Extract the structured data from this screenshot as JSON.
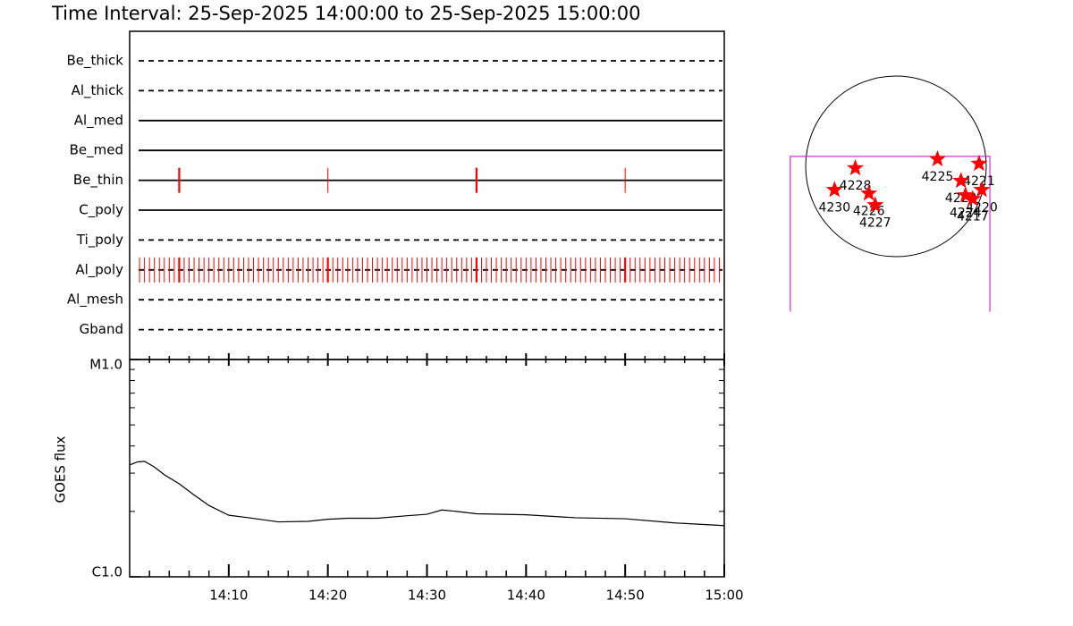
{
  "chart_data": [
    {
      "type": "timeline",
      "title": "Time Interval: 25-Sep-2025 14:00:00 to 25-Sep-2025 15:00:00",
      "xlim": [
        0,
        60
      ],
      "xticks": [
        {
          "value": 10,
          "label": "14:10"
        },
        {
          "value": 20,
          "label": "14:20"
        },
        {
          "value": 30,
          "label": "14:30"
        },
        {
          "value": 40,
          "label": "14:40"
        },
        {
          "value": 50,
          "label": "14:50"
        },
        {
          "value": 60,
          "label": "15:00"
        }
      ],
      "xminor": [
        2,
        4,
        6,
        8,
        12,
        14,
        16,
        18,
        22,
        24,
        26,
        28,
        32,
        34,
        36,
        38,
        42,
        44,
        46,
        48,
        52,
        54,
        56,
        58
      ],
      "color": "#ff0000",
      "rows": [
        {
          "name": "Be_thick",
          "style": "dashed",
          "events": []
        },
        {
          "name": "Al_thick",
          "style": "dashed",
          "events": []
        },
        {
          "name": "Al_med",
          "style": "solid",
          "events": []
        },
        {
          "name": "Be_med",
          "style": "solid",
          "events": []
        },
        {
          "name": "Be_thin",
          "style": "solid",
          "events": [
            5,
            20,
            35,
            50
          ],
          "thick_events": [
            5,
            35
          ]
        },
        {
          "name": "C_poly",
          "style": "solid",
          "events": []
        },
        {
          "name": "Ti_poly",
          "style": "dashed",
          "events": []
        },
        {
          "name": "Al_poly",
          "style": "dashed",
          "events": [
            1,
            1.5,
            2,
            2.5,
            3,
            3.5,
            4,
            4.5,
            5.5,
            6,
            6.5,
            7,
            7.5,
            8,
            8.5,
            9,
            9.5,
            10,
            10.5,
            11,
            11.5,
            12,
            12.5,
            13,
            13.5,
            14,
            14.5,
            15,
            15.5,
            16,
            16.5,
            17,
            17.5,
            18,
            18.5,
            19,
            19.5,
            20.5,
            21,
            21.5,
            22,
            22.5,
            23,
            23.5,
            24,
            24.5,
            25,
            25.5,
            26,
            26.5,
            27,
            27.5,
            28,
            28.5,
            29,
            29.5,
            30,
            30.5,
            31,
            31.5,
            32,
            32.5,
            33,
            33.5,
            34,
            34.5,
            35.5,
            36,
            36.5,
            37,
            37.5,
            38,
            38.5,
            39,
            39.5,
            40,
            40.5,
            41,
            41.5,
            42,
            42.5,
            43,
            43.5,
            44,
            44.5,
            45,
            45.5,
            46,
            46.5,
            47,
            47.5,
            48,
            48.5,
            49,
            49.5,
            50.5,
            51,
            51.5,
            52,
            52.5,
            53,
            53.5,
            54,
            54.5,
            55,
            55.5,
            56,
            56.5,
            57,
            57.5,
            58,
            58.5,
            59,
            59.5
          ],
          "thick_events": [
            5,
            20,
            35,
            50
          ]
        },
        {
          "name": "Al_mesh",
          "style": "dashed",
          "events": []
        },
        {
          "name": "Gband",
          "style": "dashed",
          "events": []
        }
      ]
    },
    {
      "type": "line",
      "log_y": true,
      "y_label": "GOES flux",
      "xlim": [
        0,
        60
      ],
      "ylim": [
        1e-06,
        1e-05
      ],
      "yticks": [
        {
          "value": 1e-06,
          "label": "C1.0"
        },
        {
          "value": 1e-05,
          "label": "M1.0"
        }
      ],
      "yminor": [
        2e-06,
        3e-06,
        4e-06,
        5e-06,
        6e-06,
        7e-06,
        8e-06,
        9e-06
      ],
      "color": "#000000",
      "x": [
        0,
        0.8,
        1.5,
        2.5,
        3.5,
        5,
        6.5,
        8,
        10,
        12,
        15,
        18,
        20,
        22,
        25,
        28,
        30,
        31.5,
        33,
        35,
        40,
        45,
        50,
        55,
        60
      ],
      "values": [
        3.27e-06,
        3.38e-06,
        3.4e-06,
        3.2e-06,
        2.95e-06,
        2.68e-06,
        2.38e-06,
        2.13e-06,
        1.92e-06,
        1.87e-06,
        1.79e-06,
        1.8e-06,
        1.84e-06,
        1.86e-06,
        1.86e-06,
        1.91e-06,
        1.94e-06,
        2.03e-06,
        2e-06,
        1.95e-06,
        1.93e-06,
        1.87e-06,
        1.85e-06,
        1.77e-06,
        1.72e-06
      ]
    },
    {
      "type": "scatter",
      "color": "#ff0000",
      "fov_color": "#cc33cc",
      "fov": {
        "x": [
          -1.17,
          1.04
        ],
        "y": [
          -1.61,
          0.11
        ]
      },
      "labels": [
        "4228",
        "4230",
        "4226",
        "4227",
        "4225",
        "4221",
        "4222",
        "4224",
        "4220",
        "4217"
      ],
      "x": [
        -0.45,
        -0.68,
        -0.3,
        -0.23,
        0.46,
        0.92,
        0.72,
        0.77,
        0.95,
        0.85
      ],
      "y": [
        -0.02,
        -0.26,
        -0.3,
        -0.43,
        0.08,
        0.03,
        -0.16,
        -0.32,
        -0.26,
        -0.36
      ]
    }
  ]
}
